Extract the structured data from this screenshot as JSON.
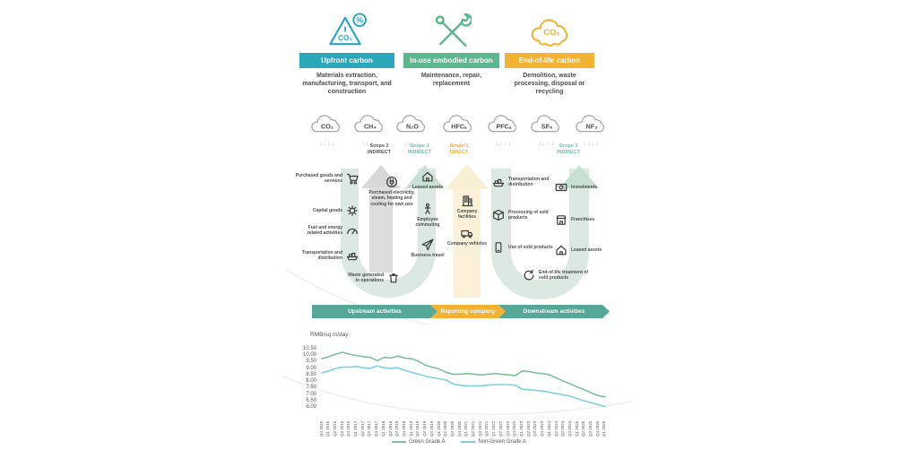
{
  "carbon_cards": [
    {
      "title": "Upfront carbon",
      "description": "Materials extraction, manufacturing, transport, and construction",
      "icon": "co2-warning-triangle-icon",
      "icon_text": "CO₂",
      "icon_badge": "%",
      "color": "#2ba7bc"
    },
    {
      "title": "In-use embodied carbon",
      "description": "Maintenance, repair, replacement",
      "icon": "crossed-tools-icon",
      "color": "#5cb68e"
    },
    {
      "title": "End-of-life carbon",
      "description": "Demolition, waste processing, disposal or recycling",
      "icon": "co2-cloud-icon",
      "icon_text": "CO₂",
      "color": "#f2b233"
    }
  ],
  "gases": [
    "CO₂",
    "CH₄",
    "N₂O",
    "HFCₛ",
    "PFCₛ",
    "SF₆",
    "NF₃"
  ],
  "decor": {
    "down_arrows": "↓↓↓↓"
  },
  "scopes": [
    {
      "line1": "Scope 2",
      "line2": "INDIRECT",
      "color": "#55565a"
    },
    {
      "line1": "Scope 3",
      "line2": "INDIRECT",
      "color": "#67c4b2"
    },
    {
      "line1": "Scope 1",
      "line2": "DIRECT",
      "color": "#f2b233"
    },
    {
      "line1": "Scope 3",
      "line2": "INDIRECT",
      "color": "#67c4b2"
    }
  ],
  "diagram": {
    "upstream_col1": [
      {
        "label": "Purchased goods and services",
        "icon": "shopping-cart-icon"
      },
      {
        "label": "Capital goods",
        "icon": "gear-icon"
      },
      {
        "label": "Fuel and energy related activities",
        "icon": "gauge-icon"
      },
      {
        "label": "Transportation and distribution",
        "icon": "cargo-ship-icon"
      },
      {
        "label": "Waste generated in operations",
        "icon": "trash-icon"
      }
    ],
    "upstream_col2": [
      {
        "label": "Purchased electricity, steam, heating and cooling for own use",
        "icon": "plug-icon"
      }
    ],
    "upstream_col3": [
      {
        "label": "Leased assets",
        "icon": "house-icon"
      },
      {
        "label": "Employee commuting",
        "icon": "person-icon"
      },
      {
        "label": "Business travel",
        "icon": "airplane-icon"
      }
    ],
    "reporting": [
      {
        "label": "Company facilities",
        "icon": "building-icon"
      },
      {
        "label": "Company vehicles",
        "icon": "van-icon"
      }
    ],
    "downstream_col1": [
      {
        "label": "Transportation and distribution",
        "icon": "cargo-ship-icon"
      },
      {
        "label": "Processing of sold products",
        "icon": "box-icon"
      },
      {
        "label": "Use of sold products",
        "icon": "device-icon"
      },
      {
        "label": "End-of-life treatment of sold products",
        "icon": "recycle-icon"
      }
    ],
    "downstream_col2": [
      {
        "label": "Investments",
        "icon": "investment-icon"
      },
      {
        "label": "Franchises",
        "icon": "storefront-icon"
      },
      {
        "label": "Leased assets",
        "icon": "house-icon"
      }
    ]
  },
  "banner": [
    {
      "label": "Upstream activities",
      "color": "#55a797"
    },
    {
      "label": "Reporting company",
      "color": "#f2b233"
    },
    {
      "label": "Downstream activities",
      "color": "#55a797"
    }
  ],
  "chart_data": {
    "type": "line",
    "title": "RMB/sq m/day",
    "ylabel": "RMB/sq m/day",
    "ylim": [
      6.0,
      10.5
    ],
    "yticks": [
      "10.50",
      "10.00",
      "9.50",
      "9.00",
      "8.50",
      "8.00",
      "7.50",
      "7.00",
      "6.50",
      "6.00"
    ],
    "grid": false,
    "legend_position": "bottom",
    "categories": [
      "Q4 2015",
      "Q1 2016",
      "Q2 2016",
      "Q3 2016",
      "Q4 2016",
      "Q1 2017",
      "Q2 2017",
      "Q3 2017",
      "Q4 2017",
      "Q1 2018",
      "Q2 2018",
      "Q3 2018",
      "Q4 2018",
      "Q1 2019",
      "Q2 2019",
      "Q3 2019",
      "Q4 2019",
      "Q1 2020",
      "Q2 2020",
      "Q3 2020",
      "Q4 2020",
      "Q1 2021",
      "Q2 2021",
      "Q3 2021",
      "Q4 2021",
      "Q1 2022",
      "Q2 2022",
      "Q3 2022",
      "Q4 2022",
      "Q1 2023",
      "Q2 2023",
      "Q3 2023",
      "Q4 2023",
      "Q1 2024",
      "Q2 2024",
      "Q3 2024",
      "Q4 2024",
      "Q1 2025",
      "Q2 2025",
      "Q3 2025",
      "Q4 2025",
      "Q1 2026"
    ],
    "series": [
      {
        "name": "Green Grade A",
        "color": "#7cc19b",
        "values": [
          9.8,
          9.95,
          10.15,
          10.3,
          10.15,
          10.05,
          9.95,
          9.9,
          9.65,
          9.9,
          9.85,
          10.0,
          9.85,
          9.8,
          9.6,
          9.3,
          9.15,
          9.0,
          8.75,
          8.6,
          8.6,
          8.65,
          8.6,
          8.55,
          8.6,
          8.65,
          8.6,
          8.55,
          8.5,
          8.85,
          8.8,
          8.7,
          8.65,
          8.55,
          8.3,
          8.05,
          7.85,
          7.6,
          7.4,
          7.15,
          6.95,
          6.85
        ]
      },
      {
        "name": "Non-Green Grade A",
        "color": "#7bd0e2",
        "values": [
          8.7,
          8.85,
          9.05,
          9.15,
          9.15,
          9.2,
          9.1,
          9.05,
          9.25,
          9.1,
          9.05,
          9.1,
          8.9,
          8.75,
          8.6,
          8.45,
          8.35,
          8.25,
          8.15,
          7.85,
          7.75,
          7.7,
          7.7,
          7.7,
          7.75,
          7.8,
          7.8,
          7.8,
          7.75,
          7.45,
          7.4,
          7.35,
          7.3,
          7.2,
          7.1,
          7.0,
          6.9,
          6.7,
          6.55,
          6.4,
          6.25,
          6.1
        ]
      }
    ]
  }
}
